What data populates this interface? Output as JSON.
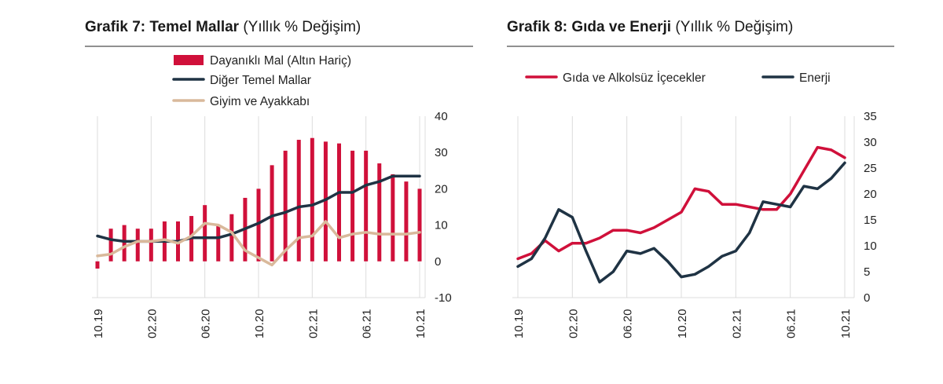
{
  "colors": {
    "red": "#d0103a",
    "navy": "#1f3344",
    "beige": "#d9b99b",
    "grid": "#dcdcdc"
  },
  "chart_data": [
    {
      "type": "bar",
      "title": "Grafik 7: Temel Mallar",
      "subtitle": "(Yıllık % Değişim)",
      "ylim": [
        -10,
        40
      ],
      "yticks": [
        "40",
        "30",
        "20",
        "10",
        "0",
        "-10"
      ],
      "yticks_values": [
        40,
        30,
        20,
        10,
        0,
        -10
      ],
      "xtick_labels": [
        "10.19",
        "02.20",
        "06.20",
        "10.20",
        "02.21",
        "06.21",
        "10.21"
      ],
      "xtick_index": [
        0,
        4,
        8,
        12,
        16,
        20,
        24
      ],
      "legend": [
        "Dayanıklı Mal (Altın Hariç)",
        "Diğer Temel Mallar",
        "Giyim ve Ayakkabı"
      ],
      "series": [
        {
          "name": "Dayanıklı Mal (Altın Hariç)",
          "kind": "bar",
          "values": [
            -2,
            9,
            10,
            9,
            9,
            11,
            11,
            12.5,
            15.5,
            10,
            13,
            17.5,
            20,
            26.5,
            30.5,
            33.5,
            34,
            33,
            32.5,
            30.5,
            30.5,
            27,
            24,
            22,
            20
          ]
        },
        {
          "name": "Diğer Temel Mallar",
          "kind": "line",
          "values": [
            7,
            6,
            5.5,
            5.5,
            5.5,
            5.5,
            5.5,
            6.5,
            6.5,
            6.5,
            7.5,
            9,
            10.5,
            12.5,
            13.5,
            15,
            15.5,
            17,
            19,
            19,
            21,
            22,
            23.5,
            23.5,
            23.5
          ]
        },
        {
          "name": "Giyim ve Ayakkabı",
          "kind": "line",
          "values": [
            1.5,
            2,
            4,
            5.5,
            5.5,
            6,
            5,
            7,
            10.5,
            10,
            8,
            3,
            1,
            -1,
            3,
            6.5,
            7,
            11,
            6.5,
            7.5,
            8,
            7.5,
            7.5,
            7.5,
            8
          ]
        }
      ]
    },
    {
      "type": "line",
      "title": "Grafik 8: Gıda ve Enerji",
      "subtitle": "(Yıllık % Değişim)",
      "ylim": [
        0,
        35
      ],
      "yticks": [
        "35",
        "30",
        "25",
        "20",
        "15",
        "10",
        "5",
        "0"
      ],
      "yticks_values": [
        35,
        30,
        25,
        20,
        15,
        10,
        5,
        0
      ],
      "xtick_labels": [
        "10.19",
        "02.20",
        "06.20",
        "10.20",
        "02.21",
        "06.21",
        "10.21"
      ],
      "xtick_index": [
        0,
        4,
        8,
        12,
        16,
        20,
        24
      ],
      "legend": [
        "Gıda ve Alkolsüz İçecekler",
        "Enerji"
      ],
      "series": [
        {
          "name": "Gıda ve Alkolsüz İçecekler",
          "values": [
            7.5,
            8.5,
            11,
            9,
            10.5,
            10.5,
            11.5,
            13,
            13,
            12.5,
            13.5,
            15,
            16.5,
            21,
            20.5,
            18,
            18,
            17.5,
            17,
            17,
            20,
            24.5,
            29,
            28.5,
            27
          ]
        },
        {
          "name": "Enerji",
          "values": [
            6,
            7.5,
            11.5,
            17,
            15.5,
            9,
            3,
            5,
            9,
            8.5,
            9.5,
            7,
            4,
            4.5,
            6,
            8,
            9,
            12.5,
            18.5,
            18,
            17.5,
            21.5,
            21,
            23,
            26
          ]
        }
      ]
    }
  ]
}
